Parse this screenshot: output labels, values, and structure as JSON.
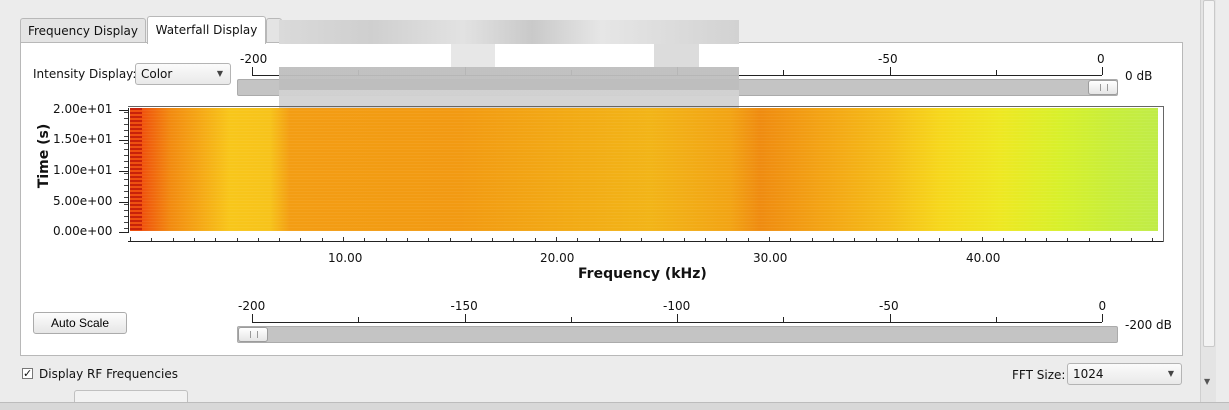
{
  "tabs": [
    {
      "label": "Frequency Display",
      "active": false
    },
    {
      "label": "Waterfall Display",
      "active": true
    }
  ],
  "intensity": {
    "label": "Intensity Display:",
    "value": "Color"
  },
  "top_slider": {
    "ticks": [
      {
        "value": -200,
        "label": "-200"
      },
      {
        "value": -50,
        "label": "-50"
      },
      {
        "value": 0,
        "label": "0"
      }
    ],
    "value_label": "0 dB",
    "value": 0
  },
  "bottom_slider": {
    "ticks": [
      {
        "value": -200,
        "label": "-200"
      },
      {
        "value": -150,
        "label": "-150"
      },
      {
        "value": -100,
        "label": "-100"
      },
      {
        "value": -50,
        "label": "-50"
      },
      {
        "value": 0,
        "label": "0"
      }
    ],
    "value_label": "-200 dB",
    "value": -200,
    "range": [
      -200,
      0
    ]
  },
  "auto_scale_label": "Auto Scale",
  "chart": {
    "y_label": "Time (s)",
    "y_ticks": [
      "2.00e+01",
      "1.50e+01",
      "1.00e+01",
      "5.00e+00",
      "0.00e+00"
    ],
    "x_label": "Frequency (kHz)",
    "x_ticks": [
      "10.00",
      "20.00",
      "30.00",
      "40.00"
    ]
  },
  "rf_checkbox": {
    "label": "Display RF Frequencies",
    "checked": true
  },
  "fft": {
    "label": "FFT Size:",
    "value": "1024"
  },
  "colors": {
    "panel_bg": "#ffffff",
    "window_bg": "#ececec",
    "slider": "#c4c4c4"
  }
}
